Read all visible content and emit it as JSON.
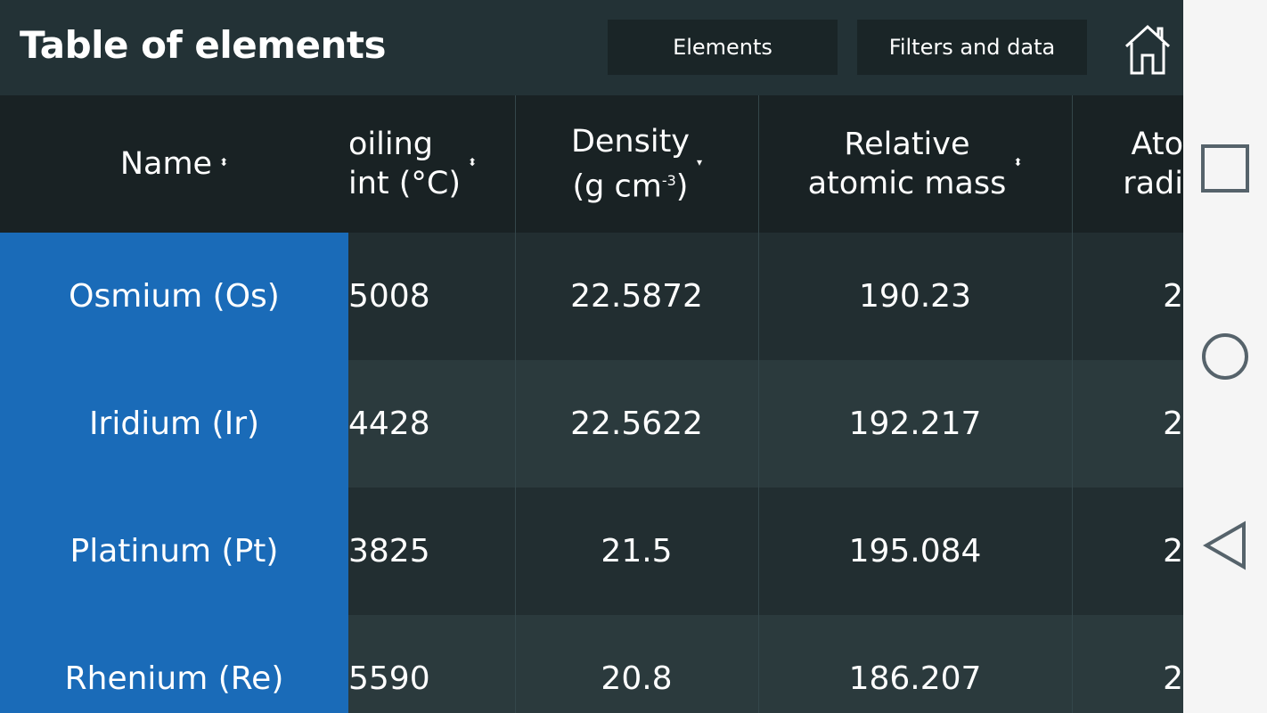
{
  "header": {
    "title": "Table of elements",
    "tabs": [
      {
        "label": "Elements"
      },
      {
        "label": "Filters and data"
      }
    ],
    "home_icon": "home-icon"
  },
  "table": {
    "columns": [
      {
        "line1": "Name",
        "line2": "",
        "sort": "sort-both-icon"
      },
      {
        "line1": "oiling",
        "line2": "int (°C)",
        "sort": "sort-both-icon"
      },
      {
        "line1": "Density",
        "line2": "(g cm",
        "sup": "-3",
        "line2_end": ")",
        "sort": "sort-desc-icon"
      },
      {
        "line1": "Relative",
        "line2": "atomic mass",
        "sort": "sort-both-icon"
      },
      {
        "line1": "Ato",
        "line2": "radi"
      }
    ],
    "rows": [
      {
        "name": "Osmium (Os)",
        "boiling": "5008",
        "density": "22.5872",
        "mass": "190.23",
        "radius": "2"
      },
      {
        "name": "Iridium (Ir)",
        "boiling": "4428",
        "density": "22.5622",
        "mass": "192.217",
        "radius": "2"
      },
      {
        "name": "Platinum (Pt)",
        "boiling": "3825",
        "density": "21.5",
        "mass": "195.084",
        "radius": "2"
      },
      {
        "name": "Rhenium (Re)",
        "boiling": "5590",
        "density": "20.8",
        "mass": "186.207",
        "radius": "2"
      }
    ]
  },
  "colors": {
    "accent": "#1a6bb8",
    "header_bg": "#192224",
    "row_a": "#222e31",
    "row_b": "#2b3a3d"
  },
  "navbar": {
    "icons": [
      "recents-icon",
      "home-circle-icon",
      "back-icon"
    ]
  }
}
